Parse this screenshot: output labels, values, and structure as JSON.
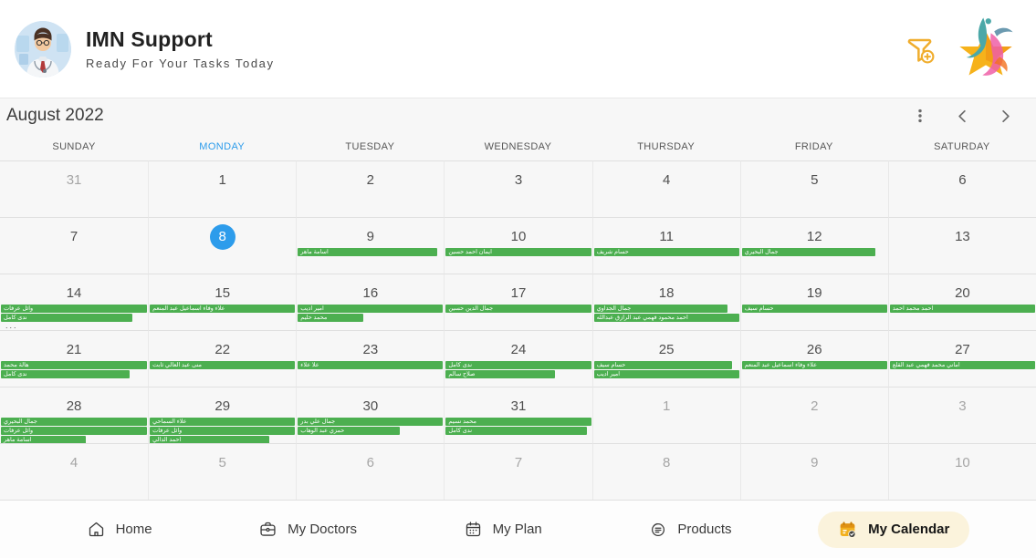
{
  "header": {
    "app_title": "IMN Support",
    "subtitle": "Ready For Your Tasks Today",
    "avatar_name": "doctor-avatar",
    "actions": [
      {
        "icon": "filter-add-icon"
      },
      {
        "icon": "star-logo"
      }
    ]
  },
  "calendar": {
    "month_label": "August 2022",
    "toolbar_icons": [
      "kebab-menu-icon",
      "chevron-left-icon",
      "chevron-right-icon"
    ],
    "more_indicator": "...",
    "colors": {
      "event_green": "#4caf50",
      "today_blue": "#2d9ceb",
      "weekday_active": "#2d9ceb",
      "active_nav_bg": "#fbf3dc"
    },
    "weekdays": [
      {
        "label": "SUNDAY",
        "active": false
      },
      {
        "label": "MONDAY",
        "active": true
      },
      {
        "label": "TUESDAY",
        "active": false
      },
      {
        "label": "WEDNESDAY",
        "active": false
      },
      {
        "label": "THURSDAY",
        "active": false
      },
      {
        "label": "FRIDAY",
        "active": false
      },
      {
        "label": "SATURDAY",
        "active": false
      }
    ],
    "weeks": [
      [
        {
          "day": 31,
          "muted": true
        },
        {
          "day": 1
        },
        {
          "day": 2
        },
        {
          "day": 3
        },
        {
          "day": 4
        },
        {
          "day": 5
        },
        {
          "day": 6
        }
      ],
      [
        {
          "day": 7
        },
        {
          "day": 8,
          "today": true
        },
        {
          "day": 9,
          "events": [
            {
              "title": "اسامة ماهر",
              "width": 0.96
            }
          ]
        },
        {
          "day": 10,
          "events": [
            {
              "title": "ايمان احمد حسين",
              "width": 1
            }
          ]
        },
        {
          "day": 11,
          "events": [
            {
              "title": "حسام شريف",
              "width": 1
            }
          ]
        },
        {
          "day": 12,
          "events": [
            {
              "title": "جمال البحيري",
              "width": 0.92
            }
          ]
        },
        {
          "day": 13
        }
      ],
      [
        {
          "day": 14,
          "events": [
            {
              "title": "وائل عرفات",
              "width": 1
            },
            {
              "title": "ندى كامل",
              "width": 0.9
            }
          ],
          "more": true
        },
        {
          "day": 15,
          "events": [
            {
              "title": "علاء وفاء اسماعيل عبد المنعم",
              "width": 1
            }
          ]
        },
        {
          "day": 16,
          "events": [
            {
              "title": "امير اديب",
              "width": 1
            },
            {
              "title": "محمد حليم",
              "width": 0.45
            }
          ]
        },
        {
          "day": 17,
          "events": [
            {
              "title": "جمال الدين حسين",
              "width": 1
            }
          ]
        },
        {
          "day": 18,
          "events": [
            {
              "title": "جمال الجداوي",
              "width": 0.92
            },
            {
              "title": "احمد محمود فهمي عبد الرازق عبدالله",
              "width": 1
            }
          ]
        },
        {
          "day": 19,
          "events": [
            {
              "title": "حسام سيف",
              "width": 1
            }
          ]
        },
        {
          "day": 20,
          "events": [
            {
              "title": "احمد محمد احمد",
              "width": 1
            }
          ]
        }
      ],
      [
        {
          "day": 21,
          "events": [
            {
              "title": "هالة محمد",
              "width": 1
            },
            {
              "title": "ندى كامل",
              "width": 0.88
            }
          ]
        },
        {
          "day": 22,
          "events": [
            {
              "title": "منى عبد العالي ثابت",
              "width": 1
            }
          ]
        },
        {
          "day": 23,
          "events": [
            {
              "title": "علا علاء",
              "width": 1
            }
          ]
        },
        {
          "day": 24,
          "events": [
            {
              "title": "ندى كامل",
              "width": 1
            },
            {
              "title": "صلاح سالم",
              "width": 0.75
            }
          ]
        },
        {
          "day": 25,
          "events": [
            {
              "title": "حسام سيف",
              "width": 0.95
            },
            {
              "title": "امير اديب",
              "width": 1
            }
          ]
        },
        {
          "day": 26,
          "events": [
            {
              "title": "علاء وفاء اسماعيل عبد المنعم",
              "width": 1
            }
          ]
        },
        {
          "day": 27,
          "events": [
            {
              "title": "اماني محمد فهمي عبد القلع",
              "width": 1
            }
          ]
        }
      ],
      [
        {
          "day": 28,
          "events": [
            {
              "title": "جمال البحيري",
              "width": 1
            },
            {
              "title": "وائل عرفات",
              "width": 1
            },
            {
              "title": "اسامة ماهر",
              "width": 0.58
            }
          ]
        },
        {
          "day": 29,
          "events": [
            {
              "title": "علاء السماحي",
              "width": 1
            },
            {
              "title": "وائل عرفات",
              "width": 1
            },
            {
              "title": "احمد الدالي",
              "width": 0.82
            }
          ]
        },
        {
          "day": 30,
          "events": [
            {
              "title": "جمال علي بدر",
              "width": 1
            },
            {
              "title": "حمزي عبد الوهاب",
              "width": 0.7
            }
          ]
        },
        {
          "day": 31,
          "events": [
            {
              "title": "محمد نسيم",
              "width": 1
            },
            {
              "title": "ندى كامل",
              "width": 0.97
            }
          ]
        },
        {
          "day": 1,
          "muted": true
        },
        {
          "day": 2,
          "muted": true
        },
        {
          "day": 3,
          "muted": true
        }
      ],
      [
        {
          "day": 4,
          "muted": true
        },
        {
          "day": 5,
          "muted": true
        },
        {
          "day": 6,
          "muted": true
        },
        {
          "day": 7,
          "muted": true
        },
        {
          "day": 8,
          "muted": true
        },
        {
          "day": 9,
          "muted": true
        },
        {
          "day": 10,
          "muted": true
        }
      ]
    ]
  },
  "nav": {
    "items": [
      {
        "label": "Home",
        "icon": "home-icon",
        "active": false
      },
      {
        "label": "My Doctors",
        "icon": "doctors-bag-icon",
        "active": false
      },
      {
        "label": "My Plan",
        "icon": "plan-calendar-icon",
        "active": false
      },
      {
        "label": "Products",
        "icon": "products-icon",
        "active": false
      },
      {
        "label": "My Calendar",
        "icon": "calendar-check-icon",
        "active": true
      }
    ]
  }
}
